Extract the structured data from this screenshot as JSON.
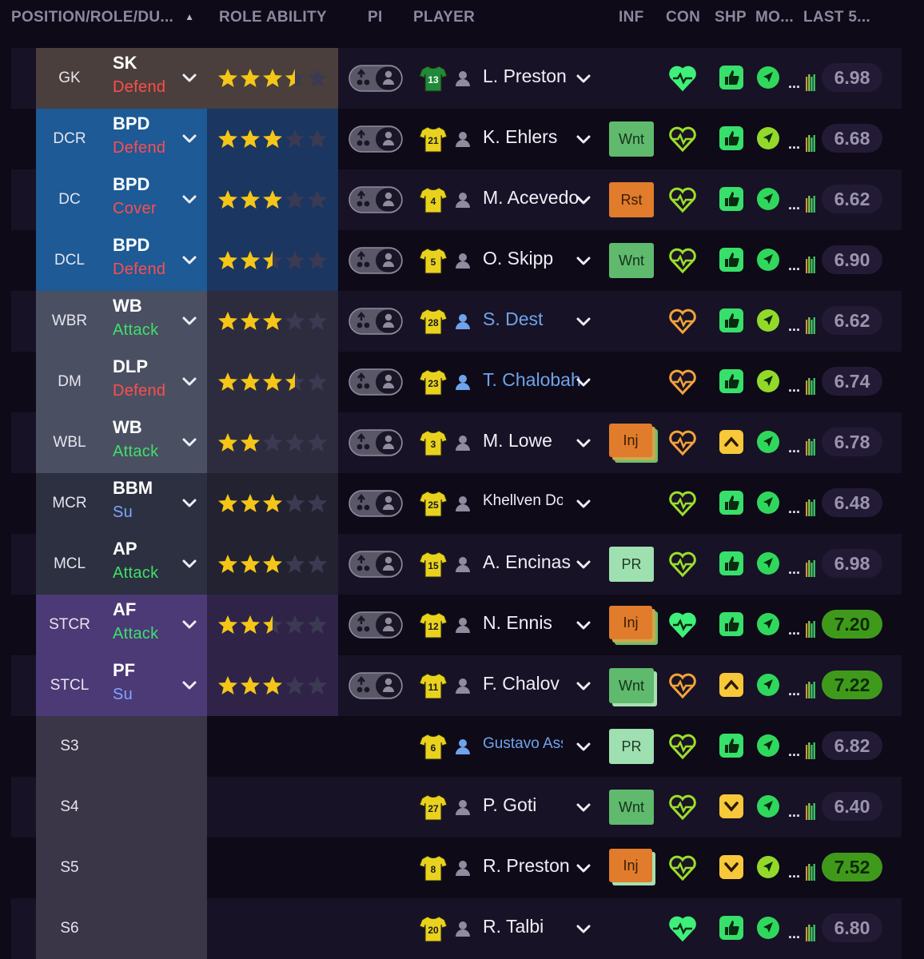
{
  "header": {
    "position": "POSITION/ROLE/DU...",
    "ability": "ROLE ABILITY",
    "pi": "PI",
    "player": "PLAYER",
    "inf": "INF",
    "con": "CON",
    "shp": "SHP",
    "mo": "MO...",
    "last5": "LAST 5..."
  },
  "colors": {
    "gk": "#4a3f3c",
    "defence": "#1d5a96",
    "defence_ability": "#1b3660",
    "wide": "#4a5062",
    "wide_ability": "#2d2c3e",
    "midfield": "#2c3040",
    "midfield_ability": "#222230",
    "attack": "#4c3a76",
    "attack_ability": "#2f2448",
    "subs": "#3a3648",
    "duty_defend": "#ff4d4d",
    "duty_attack": "#3ee06a",
    "duty_support": "#7fa6ff",
    "star": "#f5c518",
    "star_empty": "#3b3a52"
  },
  "rows": [
    {
      "pos": "GK",
      "role": "SK",
      "duty": "Defend",
      "stars": 3.5,
      "group": "gk",
      "kit": "13",
      "kit_type": "gk",
      "name": "L. Preston",
      "link": false,
      "inf": "",
      "con": "green",
      "shp": "up",
      "mo": "green",
      "rating": "6.98",
      "good": false
    },
    {
      "pos": "DCR",
      "role": "BPD",
      "duty": "Defend",
      "stars": 3,
      "group": "defence",
      "kit": "21",
      "kit_type": "out",
      "name": "K. Ehlers",
      "link": false,
      "inf": "Wnt",
      "con": "lime",
      "shp": "up",
      "mo": "lime",
      "rating": "6.68",
      "good": false
    },
    {
      "pos": "DC",
      "role": "BPD",
      "duty": "Cover",
      "stars": 3,
      "group": "defence",
      "kit": "4",
      "kit_type": "out",
      "name": "M. Acevedo",
      "link": false,
      "inf": "Rst",
      "con": "lime",
      "shp": "up",
      "mo": "green",
      "rating": "6.62",
      "good": false
    },
    {
      "pos": "DCL",
      "role": "BPD",
      "duty": "Defend",
      "stars": 2.5,
      "group": "defence",
      "kit": "5",
      "kit_type": "out",
      "name": "O. Skipp",
      "link": false,
      "inf": "Wnt",
      "con": "lime",
      "shp": "up",
      "mo": "green",
      "rating": "6.90",
      "good": false
    },
    {
      "pos": "WBR",
      "role": "WB",
      "duty": "Attack",
      "stars": 3,
      "group": "wide",
      "kit": "28",
      "kit_type": "out",
      "name": "S. Dest",
      "link": true,
      "inf": "",
      "con": "orange",
      "shp": "up",
      "mo": "lime",
      "rating": "6.62",
      "good": false
    },
    {
      "pos": "DM",
      "role": "DLP",
      "duty": "Defend",
      "stars": 3.5,
      "group": "wide",
      "kit": "23",
      "kit_type": "out",
      "name": "T. Chalobah",
      "link": true,
      "inf": "",
      "con": "orange",
      "shp": "up",
      "mo": "lime",
      "rating": "6.74",
      "good": false
    },
    {
      "pos": "WBL",
      "role": "WB",
      "duty": "Attack",
      "stars": 2,
      "group": "wide",
      "kit": "3",
      "kit_type": "out",
      "name": "M. Lowe",
      "link": false,
      "inf": "Inj",
      "con": "orange",
      "shp": "caret",
      "mo": "green",
      "rating": "6.78",
      "good": false
    },
    {
      "pos": "MCR",
      "role": "BBM",
      "duty": "Su",
      "stars": 3,
      "group": "midfield",
      "kit": "25",
      "kit_type": "out",
      "name": "Khellven Douglas",
      "link": false,
      "inf": "",
      "con": "lime",
      "shp": "up",
      "mo": "green",
      "rating": "6.48",
      "good": false
    },
    {
      "pos": "MCL",
      "role": "AP",
      "duty": "Attack",
      "stars": 3,
      "group": "midfield",
      "kit": "15",
      "kit_type": "out",
      "name": "A. Encinas",
      "link": false,
      "inf": "PR",
      "con": "lime",
      "shp": "up",
      "mo": "green",
      "rating": "6.98",
      "good": false
    },
    {
      "pos": "STCR",
      "role": "AF",
      "duty": "Attack",
      "stars": 2.5,
      "group": "attack",
      "kit": "12",
      "kit_type": "out",
      "name": "N. Ennis",
      "link": false,
      "inf": "Inj",
      "con": "green",
      "shp": "up",
      "mo": "green",
      "rating": "7.20",
      "good": true
    },
    {
      "pos": "STCL",
      "role": "PF",
      "duty": "Su",
      "stars": 3,
      "group": "attack",
      "kit": "11",
      "kit_type": "out",
      "name": "F. Chalov",
      "link": false,
      "inf": "Wnt",
      "con": "orange",
      "shp": "caret",
      "mo": "green",
      "rating": "7.22",
      "good": true
    },
    {
      "pos": "S3",
      "role": "",
      "duty": "",
      "stars": 0,
      "group": "subs",
      "kit": "6",
      "kit_type": "out",
      "name": "Gustavo Assun...",
      "link": true,
      "inf": "PR",
      "con": "lime",
      "shp": "up",
      "mo": "green",
      "rating": "6.82",
      "good": false
    },
    {
      "pos": "S4",
      "role": "",
      "duty": "",
      "stars": 0,
      "group": "subs",
      "kit": "27",
      "kit_type": "out",
      "name": "P. Goti",
      "link": false,
      "inf": "Wnt",
      "con": "lime",
      "shp": "down",
      "mo": "green",
      "rating": "6.40",
      "good": false
    },
    {
      "pos": "S5",
      "role": "",
      "duty": "",
      "stars": 0,
      "group": "subs",
      "kit": "8",
      "kit_type": "out",
      "name": "R. Preston",
      "link": false,
      "inf": "Inj",
      "con": "lime",
      "shp": "down",
      "mo": "lime",
      "rating": "7.52",
      "good": true
    },
    {
      "pos": "S6",
      "role": "",
      "duty": "",
      "stars": 0,
      "group": "subs",
      "kit": "20",
      "kit_type": "out",
      "name": "R. Talbi",
      "link": false,
      "inf": "",
      "con": "green",
      "shp": "up",
      "mo": "green",
      "rating": "6.80",
      "good": false
    }
  ]
}
